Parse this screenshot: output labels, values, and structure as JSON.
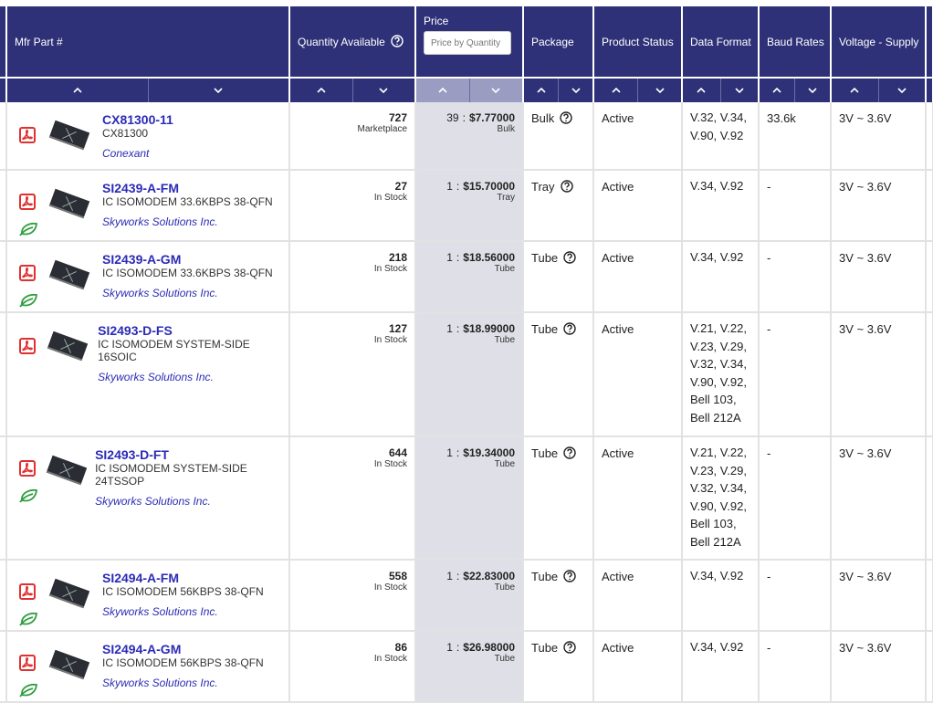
{
  "table": {
    "columns": [
      "Mfr Part #",
      "Quantity Available",
      "Price",
      "Package",
      "Product Status",
      "Data Format",
      "Baud Rates",
      "Voltage - Supply"
    ],
    "price_placeholder": "Price by Quantity",
    "price_separator": ":",
    "rows": [
      {
        "part": "CX81300-11",
        "description": "CX81300",
        "manufacturer": "Conexant",
        "quantity": "727",
        "stock": "Marketplace",
        "min_qty": "39",
        "price": "$7.77000",
        "price_package": "Bulk",
        "package": "Bulk",
        "status": "Active",
        "data_format": "V.32, V.34, V.90, V.92",
        "baud": "33.6k",
        "voltage": "3V ~ 3.6V",
        "rohs": false
      },
      {
        "part": "SI2439-A-FM",
        "description": "IC ISOMODEM 33.6KBPS 38-QFN",
        "manufacturer": "Skyworks Solutions Inc.",
        "quantity": "27",
        "stock": "In Stock",
        "min_qty": "1",
        "price": "$15.70000",
        "price_package": "Tray",
        "package": "Tray",
        "status": "Active",
        "data_format": "V.34, V.92",
        "baud": "-",
        "voltage": "3V ~ 3.6V",
        "rohs": true
      },
      {
        "part": "SI2439-A-GM",
        "description": "IC ISOMODEM 33.6KBPS 38-QFN",
        "manufacturer": "Skyworks Solutions Inc.",
        "quantity": "218",
        "stock": "In Stock",
        "min_qty": "1",
        "price": "$18.56000",
        "price_package": "Tube",
        "package": "Tube",
        "status": "Active",
        "data_format": "V.34, V.92",
        "baud": "-",
        "voltage": "3V ~ 3.6V",
        "rohs": true
      },
      {
        "part": "SI2493-D-FS",
        "description": "IC ISOMODEM SYSTEM-SIDE 16SOIC",
        "manufacturer": "Skyworks Solutions Inc.",
        "quantity": "127",
        "stock": "In Stock",
        "min_qty": "1",
        "price": "$18.99000",
        "price_package": "Tube",
        "package": "Tube",
        "status": "Active",
        "data_format": "V.21, V.22, V.23, V.29, V.32, V.34, V.90, V.92, Bell 103, Bell 212A",
        "baud": "-",
        "voltage": "3V ~ 3.6V",
        "rohs": false
      },
      {
        "part": "SI2493-D-FT",
        "description": "IC ISOMODEM SYSTEM-SIDE 24TSSOP",
        "manufacturer": "Skyworks Solutions Inc.",
        "quantity": "644",
        "stock": "In Stock",
        "min_qty": "1",
        "price": "$19.34000",
        "price_package": "Tube",
        "package": "Tube",
        "status": "Active",
        "data_format": "V.21, V.22, V.23, V.29, V.32, V.34, V.90, V.92, Bell 103, Bell 212A",
        "baud": "-",
        "voltage": "3V ~ 3.6V",
        "rohs": true
      },
      {
        "part": "SI2494-A-FM",
        "description": "IC ISOMODEM 56KBPS 38-QFN",
        "manufacturer": "Skyworks Solutions Inc.",
        "quantity": "558",
        "stock": "In Stock",
        "min_qty": "1",
        "price": "$22.83000",
        "price_package": "Tube",
        "package": "Tube",
        "status": "Active",
        "data_format": "V.34, V.92",
        "baud": "-",
        "voltage": "3V ~ 3.6V",
        "rohs": true
      },
      {
        "part": "SI2494-A-GM",
        "description": "IC ISOMODEM 56KBPS 38-QFN",
        "manufacturer": "Skyworks Solutions Inc.",
        "quantity": "86",
        "stock": "In Stock",
        "min_qty": "1",
        "price": "$26.98000",
        "price_package": "Tube",
        "package": "Tube",
        "status": "Active",
        "data_format": "V.34, V.92",
        "baud": "-",
        "voltage": "3V ~ 3.6V",
        "rohs": true
      }
    ]
  }
}
